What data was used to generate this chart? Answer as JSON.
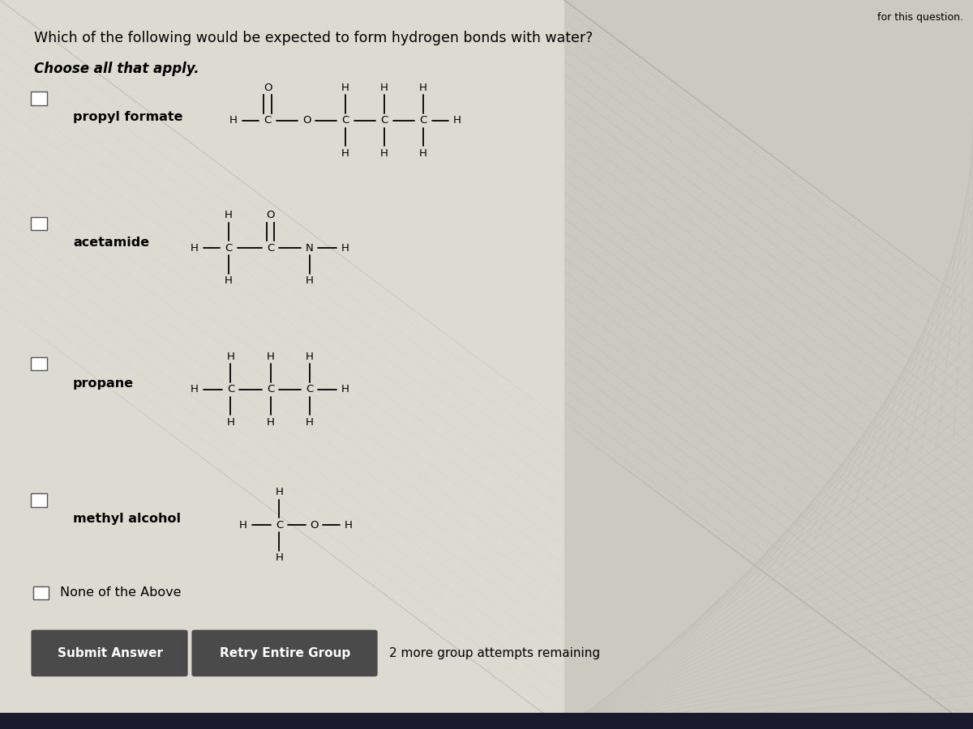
{
  "bg_color_left": "#e8e4dc",
  "bg_color_right": "#d4cfc8",
  "title": "Which of the following would be expected to form hydrogen bonds with water?",
  "subtitle": "Choose all that apply.",
  "top_right_text": "for this question.",
  "molecule_names": [
    "propyl formate",
    "acetamide",
    "propane",
    "methyl alcohol"
  ],
  "none_above": "None of the Above",
  "btn1_text": "Submit Answer",
  "btn2_text": "Retry Entire Group",
  "btn_note": "2 more group attempts remaining",
  "btn1_color": "#4a4a4a",
  "btn2_color": "#4a4a4a"
}
